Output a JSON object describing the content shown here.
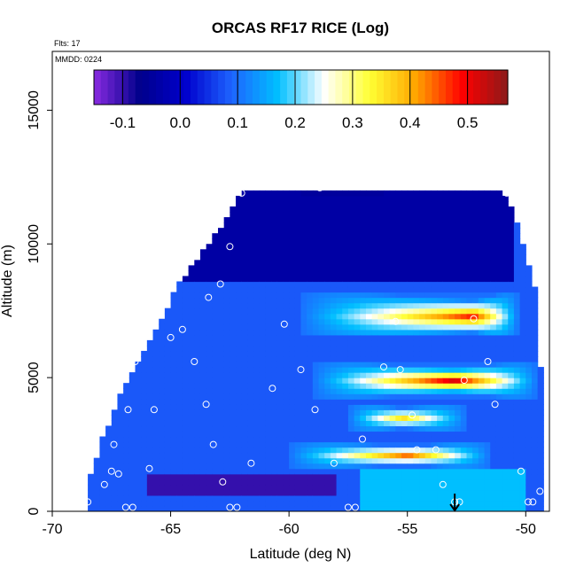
{
  "chart_data": {
    "type": "heatmap",
    "title": "ORCAS RF17 RICE (Log)",
    "flights_note": "Flts: 17",
    "date_note": "MMDD: 0224",
    "xlabel": "Latitude (deg N)",
    "ylabel": "Altitude (m)",
    "xlim": [
      -70,
      -49
    ],
    "ylim": [
      0,
      17200
    ],
    "x_ticks": [
      -70,
      -65,
      -60,
      -55,
      -50
    ],
    "x_tick_labels": [
      "-70",
      "-65",
      "-60",
      "-55",
      "-50"
    ],
    "y_ticks": [
      0,
      5000,
      10000,
      15000
    ],
    "y_tick_labels": [
      "0",
      "5000",
      "10000",
      "15000"
    ],
    "colorbar": {
      "range": [
        -0.15,
        0.57
      ],
      "ticks": [
        -0.1,
        0.0,
        0.1,
        0.2,
        0.3,
        0.4,
        0.5
      ],
      "tick_labels": [
        "-0.1",
        "0.0",
        "0.1",
        "0.2",
        "0.3",
        "0.4",
        "0.5"
      ],
      "colors": [
        "#8a2be2",
        "#00008b",
        "#0000cd",
        "#1e64ff",
        "#00bfff",
        "#ffffff",
        "#ffff33",
        "#ffa500",
        "#ff0000",
        "#8b1a1a"
      ]
    },
    "data_envelope": {
      "top_altitude": [
        [
          -68.6,
          0
        ],
        [
          -68.4,
          1200
        ],
        [
          -67.9,
          2600
        ],
        [
          -67.1,
          4300
        ],
        [
          -66.3,
          5600
        ],
        [
          -65.5,
          6800
        ],
        [
          -64.8,
          8200
        ],
        [
          -63.9,
          9300
        ],
        [
          -62.8,
          10600
        ],
        [
          -62.0,
          12000
        ],
        [
          -51.0,
          12000
        ],
        [
          -50.5,
          11000
        ],
        [
          -50.0,
          9500
        ],
        [
          -49.6,
          8300
        ],
        [
          -49.4,
          6000
        ],
        [
          -49.2,
          0
        ]
      ]
    },
    "field_features": [
      {
        "kind": "layer",
        "lat_range": [
          -68.5,
          -49.5
        ],
        "alt_range": [
          0,
          12000
        ],
        "value": 0.08
      },
      {
        "kind": "layer",
        "lat_range": [
          -65.0,
          -50.5
        ],
        "alt_range": [
          8600,
          12000
        ],
        "value": -0.04
      },
      {
        "kind": "layer",
        "lat_range": [
          -59.5,
          -56.0
        ],
        "alt_range": [
          11800,
          12400
        ],
        "value": -0.05
      },
      {
        "kind": "layer",
        "lat_range": [
          -66.0,
          -58.0
        ],
        "alt_range": [
          700,
          1400
        ],
        "value": -0.1
      },
      {
        "kind": "layer",
        "lat_range": [
          -57.0,
          -50.0
        ],
        "alt_range": [
          0,
          1500
        ],
        "value": 0.17
      },
      {
        "kind": "ridge",
        "lat_range": [
          -59.5,
          -50.3
        ],
        "alt_range": [
          6600,
          8200
        ],
        "peak_lat": -52.2,
        "peak_alt": 7300,
        "value": 0.48
      },
      {
        "kind": "ridge",
        "lat_range": [
          -59.0,
          -49.5
        ],
        "alt_range": [
          4300,
          5500
        ],
        "peak_lat": -53.0,
        "peak_alt": 4900,
        "value": 0.52
      },
      {
        "kind": "ridge",
        "lat_range": [
          -57.5,
          -52.5
        ],
        "alt_range": [
          3000,
          4000
        ],
        "peak_lat": -55.2,
        "peak_alt": 3500,
        "value": 0.36
      },
      {
        "kind": "ridge",
        "lat_range": [
          -60.0,
          -51.5
        ],
        "alt_range": [
          1700,
          2600
        ],
        "peak_lat": -55.0,
        "peak_alt": 2100,
        "value": 0.44
      }
    ],
    "flight_markers": [
      [
        -68.7,
        150
      ],
      [
        -68.5,
        350
      ],
      [
        -67.8,
        1000
      ],
      [
        -67.5,
        1500
      ],
      [
        -67.2,
        1400
      ],
      [
        -67.4,
        2500
      ],
      [
        -66.8,
        3800
      ],
      [
        -66.5,
        5600
      ],
      [
        -66.9,
        150
      ],
      [
        -66.6,
        150
      ],
      [
        -65.9,
        1600
      ],
      [
        -65.7,
        3800
      ],
      [
        -65.8,
        7600
      ],
      [
        -65.0,
        6500
      ],
      [
        -64.5,
        6800
      ],
      [
        -64.0,
        5600
      ],
      [
        -63.5,
        4000
      ],
      [
        -63.2,
        2500
      ],
      [
        -62.8,
        1100
      ],
      [
        -62.5,
        150
      ],
      [
        -62.2,
        150
      ],
      [
        -63.4,
        8000
      ],
      [
        -62.9,
        8500
      ],
      [
        -62.5,
        9900
      ],
      [
        -62.0,
        11900
      ],
      [
        -61.6,
        1800
      ],
      [
        -60.7,
        4600
      ],
      [
        -60.2,
        7000
      ],
      [
        -59.5,
        5300
      ],
      [
        -58.9,
        3800
      ],
      [
        -58.7,
        12100
      ],
      [
        -58.1,
        1800
      ],
      [
        -57.5,
        150
      ],
      [
        -57.2,
        150
      ],
      [
        -56.9,
        2700
      ],
      [
        -56.0,
        5400
      ],
      [
        -55.5,
        7100
      ],
      [
        -55.3,
        5300
      ],
      [
        -54.8,
        3600
      ],
      [
        -54.6,
        2300
      ],
      [
        -53.8,
        2300
      ],
      [
        -53.5,
        1000
      ],
      [
        -53.0,
        350
      ],
      [
        -52.8,
        350
      ],
      [
        -52.6,
        4900
      ],
      [
        -52.2,
        7200
      ],
      [
        -51.6,
        5600
      ],
      [
        -51.3,
        4000
      ],
      [
        -50.8,
        11900
      ],
      [
        -50.2,
        1500
      ],
      [
        -49.9,
        350
      ],
      [
        -49.7,
        350
      ],
      [
        -49.5,
        8600
      ],
      [
        -49.4,
        750
      ],
      [
        -55.8,
        12200
      ]
    ],
    "arrow_marker_lat": -53.0
  }
}
